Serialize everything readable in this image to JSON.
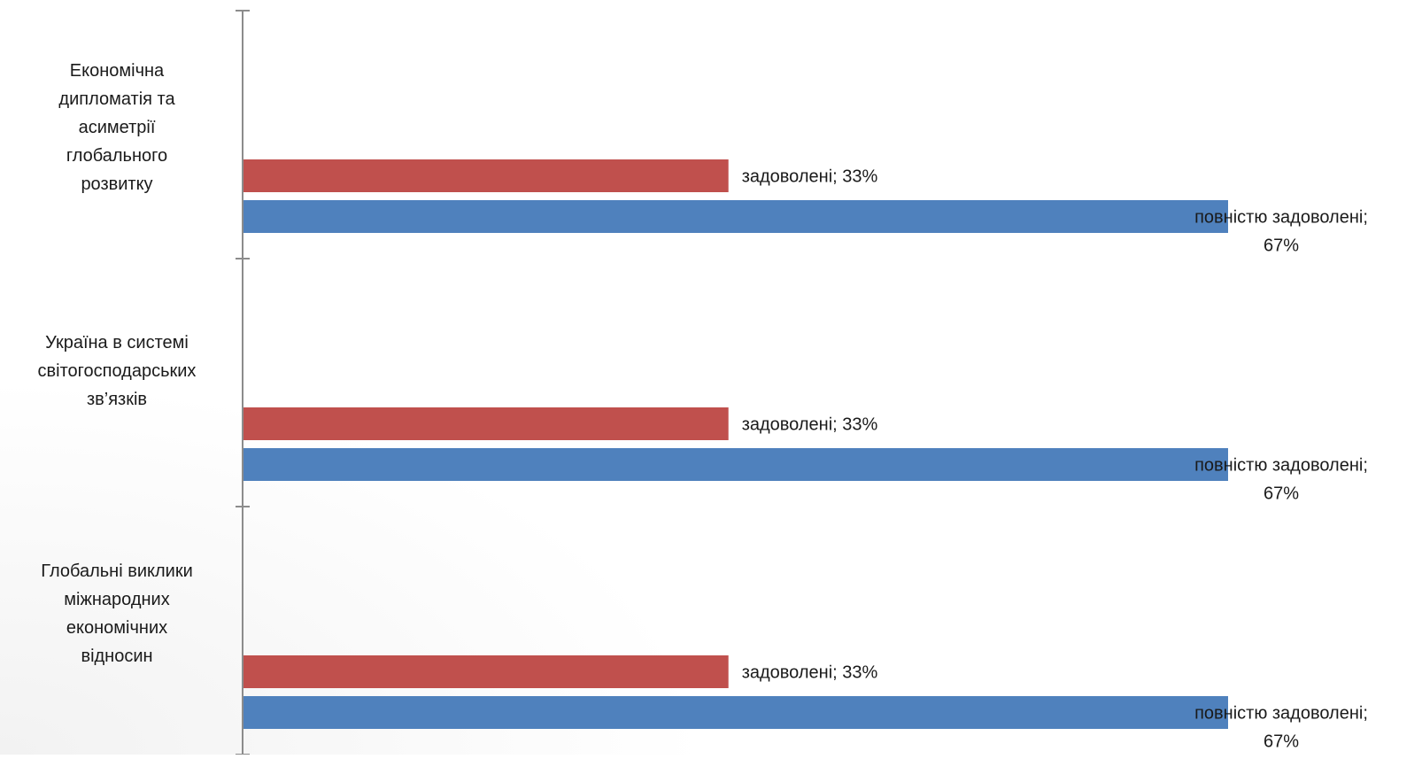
{
  "colors": {
    "series_1": "#C0504D",
    "series_2": "#4F81BD",
    "axis": "#8C8C8C"
  },
  "chart_data": {
    "type": "bar",
    "orientation": "horizontal",
    "title": "",
    "xlabel": "",
    "ylabel": "",
    "xlim": [
      0,
      67
    ],
    "grid": false,
    "legend": "none",
    "categories": [
      "Економічна дипломатія та асиметрії глобального розвитку",
      "Україна в системі світогосподарських зв’язків",
      "Глобальні виклики міжнародних економічних відносин"
    ],
    "series": [
      {
        "values": [
          33,
          33,
          33
        ],
        "labels": [
          "задоволені; 33%",
          "задоволені; 33%",
          "задоволені; 33%"
        ]
      },
      {
        "values": [
          67,
          67,
          67
        ],
        "labels": [
          "повністю задоволені; 67%",
          "повністю задоволені; 67%",
          "повністю задоволені; 67%"
        ]
      }
    ]
  }
}
